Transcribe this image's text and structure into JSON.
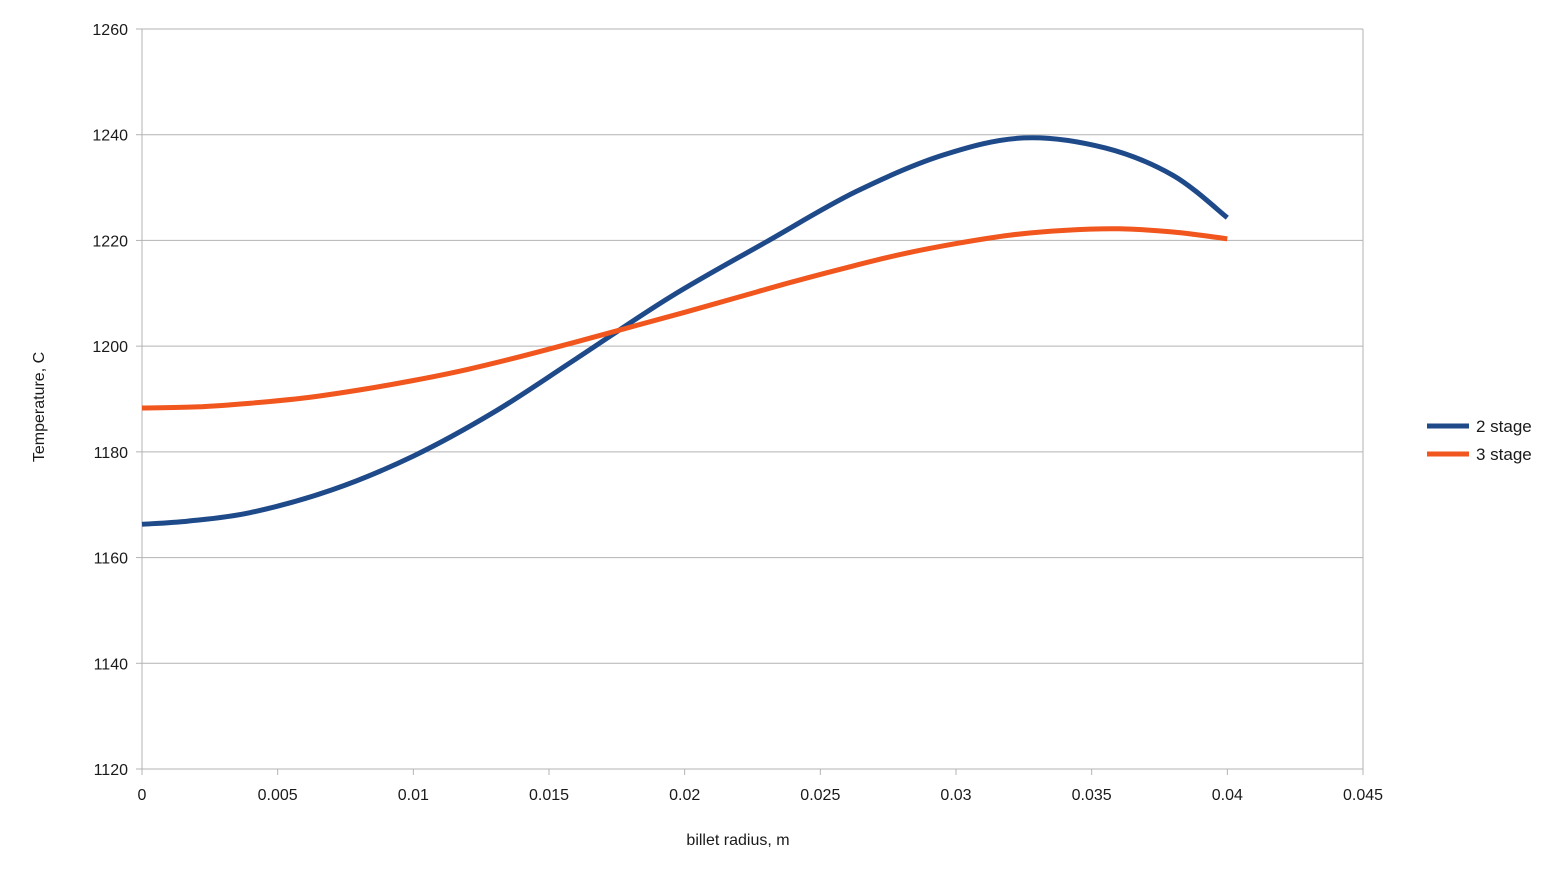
{
  "chart_data": {
    "type": "line",
    "title": "",
    "xlabel": "billet radius, m",
    "ylabel": "Temperature, C",
    "xlim": [
      0,
      0.045
    ],
    "ylim": [
      1120,
      1260
    ],
    "xticks": [
      "0",
      "0.005",
      "0.01",
      "0.015",
      "0.02",
      "0.025",
      "0.03",
      "0.035",
      "0.04",
      "0.045"
    ],
    "yticks": [
      "1120",
      "1140",
      "1160",
      "1180",
      "1200",
      "1220",
      "1240",
      "1260"
    ],
    "grid": "horizontal",
    "legend_position": "right",
    "series": [
      {
        "name": "2 stage",
        "color": "#1f4a8a",
        "x": [
          0,
          0.0017,
          0.004,
          0.007,
          0.01,
          0.013,
          0.016,
          0.0195,
          0.023,
          0.0263,
          0.0295,
          0.0325,
          0.0355,
          0.038,
          0.04
        ],
        "y": [
          1166.3,
          1166.9,
          1168.5,
          1172.8,
          1179.2,
          1187.6,
          1197.6,
          1209.4,
          1219.7,
          1229.2,
          1236.1,
          1239.4,
          1237.5,
          1232.3,
          1224.3
        ]
      },
      {
        "name": "3 stage",
        "color": "#f0561d",
        "x": [
          0,
          0.002,
          0.004,
          0.006,
          0.008,
          0.01,
          0.012,
          0.014,
          0.016,
          0.018,
          0.02,
          0.022,
          0.024,
          0.026,
          0.028,
          0.03,
          0.032,
          0.034,
          0.036,
          0.038,
          0.04
        ],
        "y": [
          1188.3,
          1188.5,
          1189.2,
          1190.2,
          1191.7,
          1193.5,
          1195.6,
          1198.1,
          1200.8,
          1203.6,
          1206.4,
          1209.3,
          1212.2,
          1214.9,
          1217.4,
          1219.4,
          1221.0,
          1221.9,
          1222.2,
          1221.6,
          1220.3
        ]
      }
    ]
  }
}
